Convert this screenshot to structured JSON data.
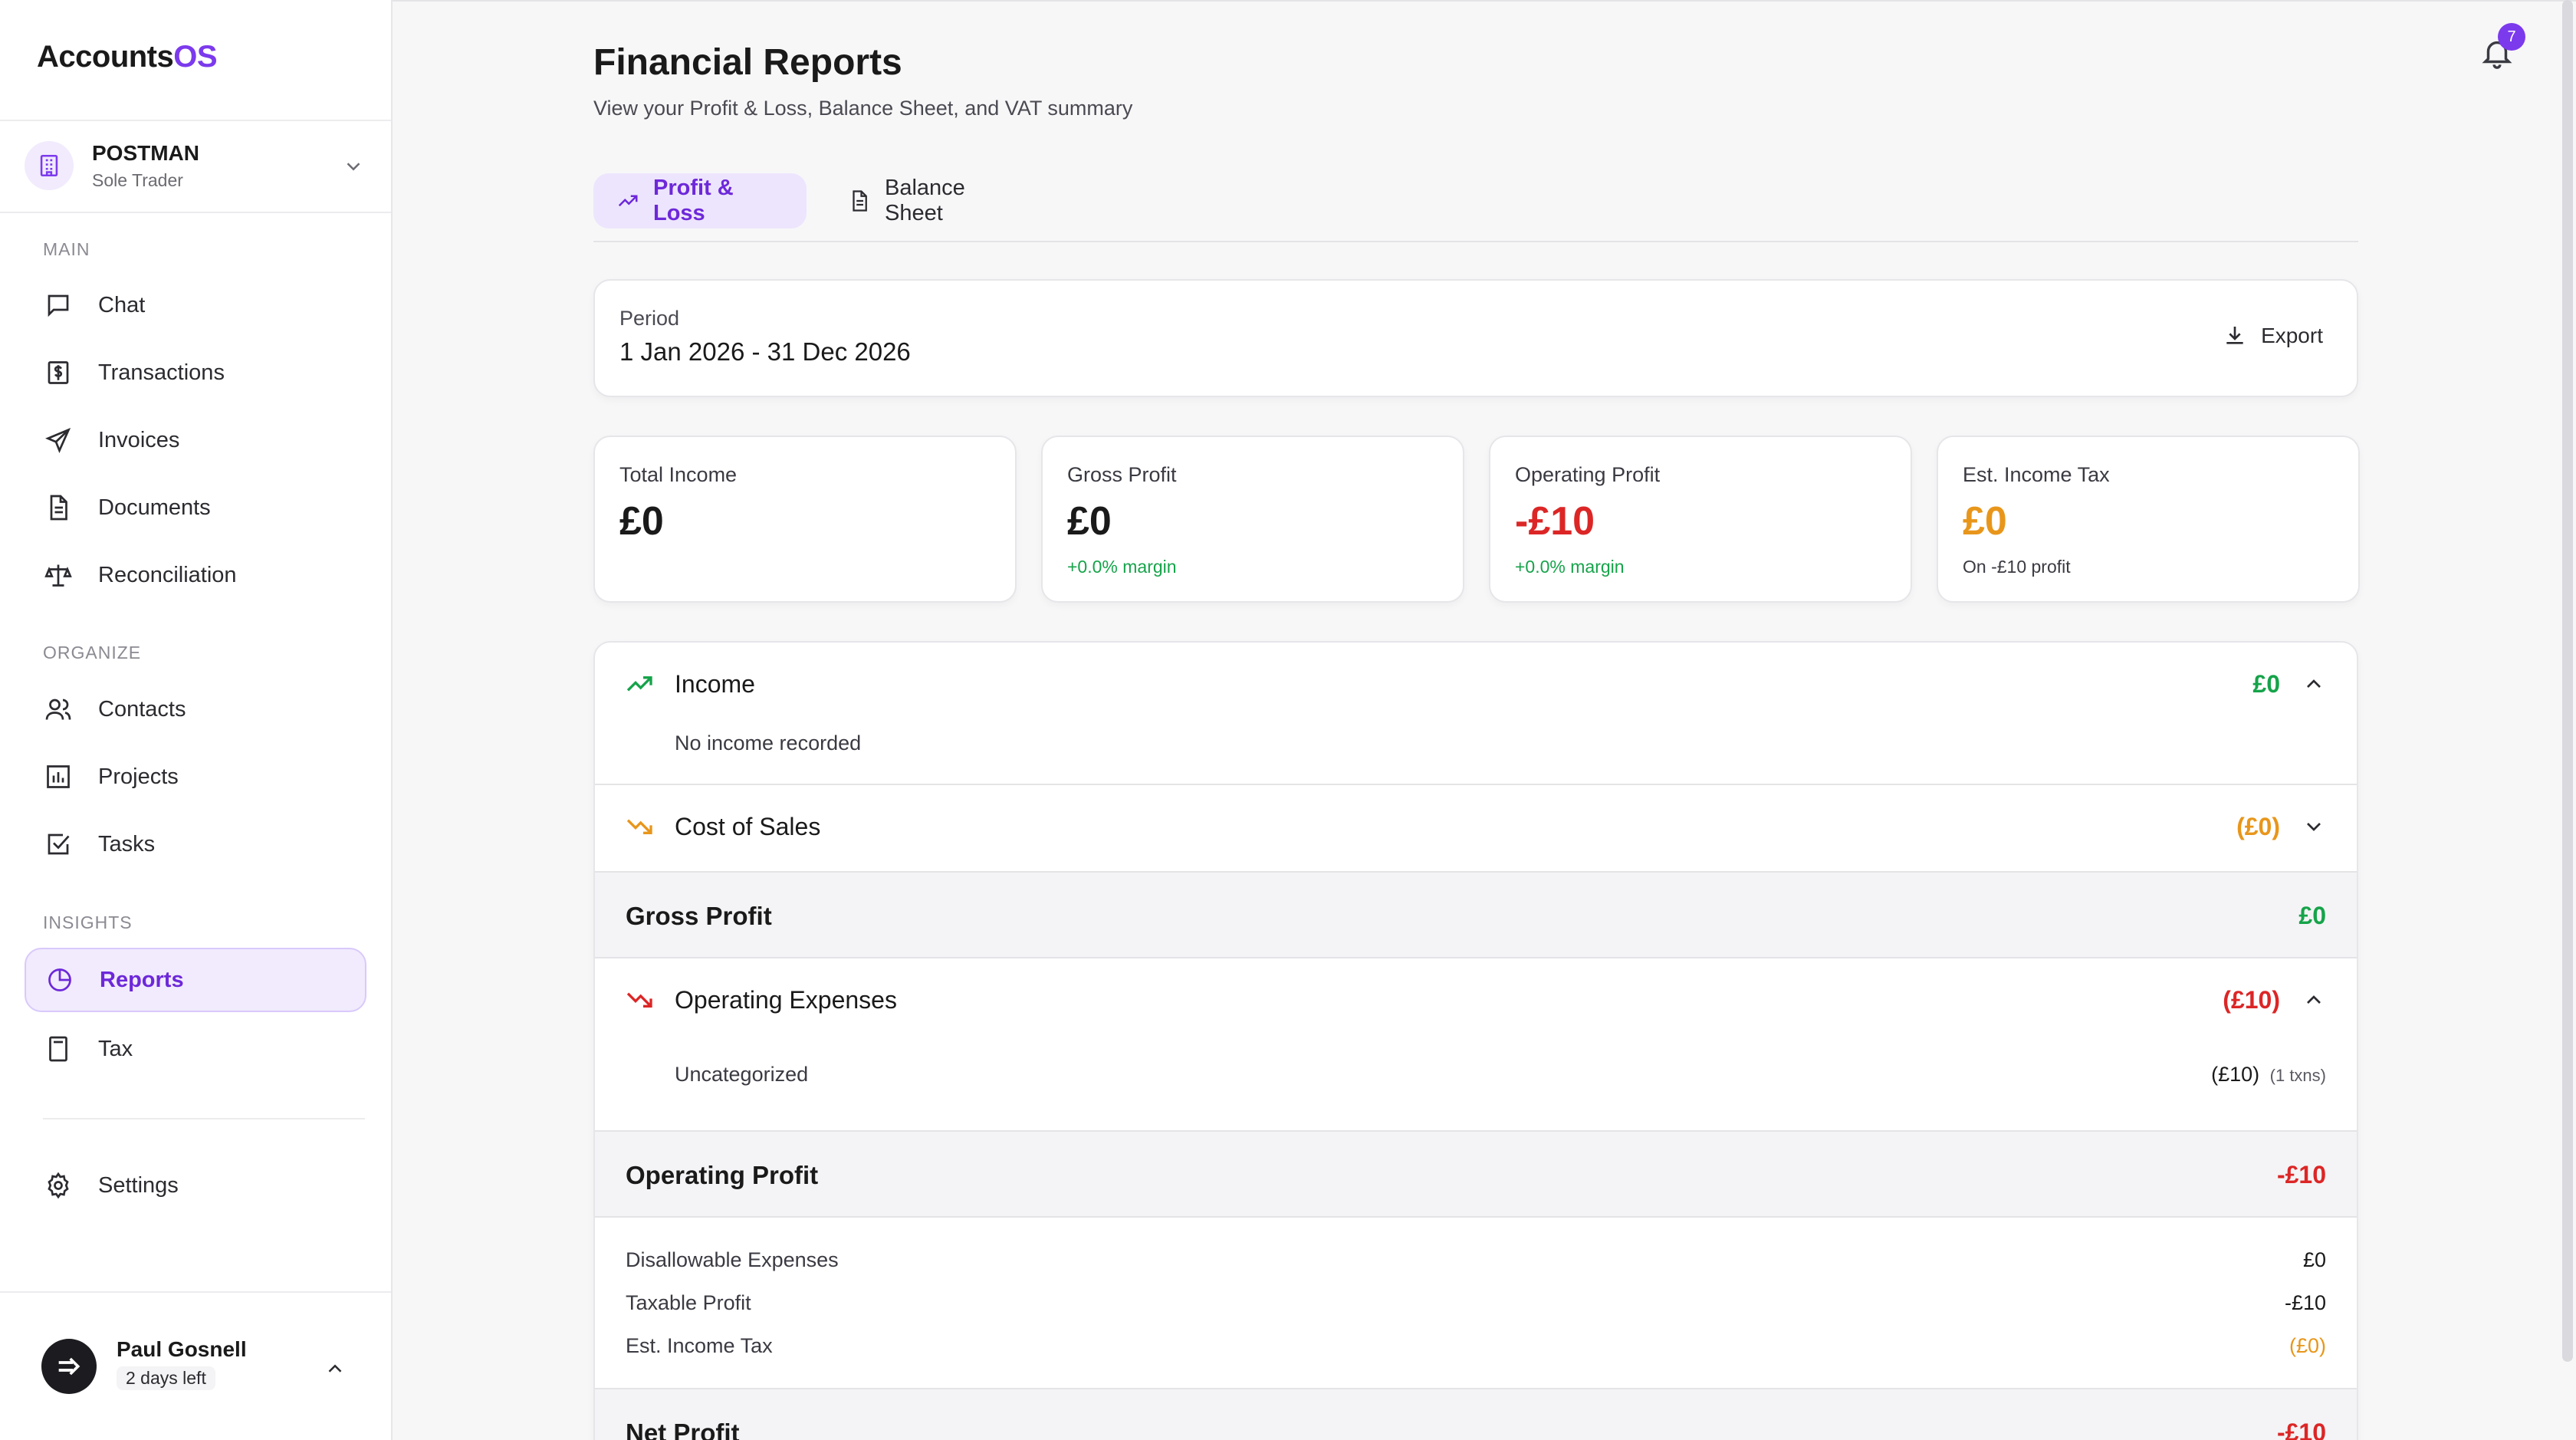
{
  "brand": {
    "name_prefix": "Accounts",
    "name_suffix": "OS"
  },
  "org": {
    "name": "POSTMAN",
    "type": "Sole Trader"
  },
  "sidebar": {
    "sections": {
      "main": "MAIN",
      "organize": "ORGANIZE",
      "insights": "INSIGHTS"
    },
    "main_items": [
      {
        "label": "Chat",
        "icon": "chat-icon"
      },
      {
        "label": "Transactions",
        "icon": "dollar-doc-icon"
      },
      {
        "label": "Invoices",
        "icon": "send-icon"
      },
      {
        "label": "Documents",
        "icon": "document-icon"
      },
      {
        "label": "Reconciliation",
        "icon": "scale-icon"
      }
    ],
    "organize_items": [
      {
        "label": "Contacts",
        "icon": "users-icon"
      },
      {
        "label": "Projects",
        "icon": "chart-icon"
      },
      {
        "label": "Tasks",
        "icon": "checkbox-icon"
      }
    ],
    "insights_items": [
      {
        "label": "Reports",
        "icon": "pie-icon",
        "active": true
      },
      {
        "label": "Tax",
        "icon": "calculator-icon"
      }
    ],
    "settings": {
      "label": "Settings",
      "icon": "gear-icon"
    }
  },
  "user": {
    "name": "Paul Gosnell",
    "trial": "2 days left"
  },
  "header": {
    "title": "Financial Reports",
    "subtitle": "View your Profit & Loss, Balance Sheet, and VAT summary",
    "notifications": "7"
  },
  "tabs": [
    {
      "label": "Profit & Loss",
      "active": true
    },
    {
      "label": "Balance Sheet",
      "active": false
    }
  ],
  "period": {
    "label": "Period",
    "value": "1 Jan 2026 - 31 Dec 2026",
    "export_label": "Export"
  },
  "stats": [
    {
      "label": "Total Income",
      "value": "£0",
      "note": ""
    },
    {
      "label": "Gross Profit",
      "value": "£0",
      "note": "+0.0% margin"
    },
    {
      "label": "Operating Profit",
      "value": "-£10",
      "note": "+0.0% margin"
    },
    {
      "label": "Est. Income Tax",
      "value": "£0",
      "note": "On -£10 profit"
    }
  ],
  "pl": {
    "income": {
      "label": "Income",
      "value": "£0",
      "empty": "No income recorded"
    },
    "cost_of_sales": {
      "label": "Cost of Sales",
      "value": "(£0)"
    },
    "gross_profit": {
      "label": "Gross Profit",
      "value": "£0"
    },
    "operating_expenses": {
      "label": "Operating Expenses",
      "value": "(£10)",
      "items": [
        {
          "label": "Uncategorized",
          "value": "(£10)",
          "count": "(1 txns)"
        }
      ]
    },
    "operating_profit": {
      "label": "Operating Profit",
      "value": "-£10"
    },
    "tax_rows": [
      {
        "label": "Disallowable Expenses",
        "value": "£0"
      },
      {
        "label": "Taxable Profit",
        "value": "-£10"
      },
      {
        "label": "Est. Income Tax",
        "value": "(£0)"
      }
    ],
    "net_profit": {
      "label": "Net Profit",
      "value": "-£10"
    }
  },
  "colors": {
    "accent": "#7c3aed",
    "positive": "#16a34a",
    "negative": "#dc2626",
    "warning": "#e8961b"
  }
}
